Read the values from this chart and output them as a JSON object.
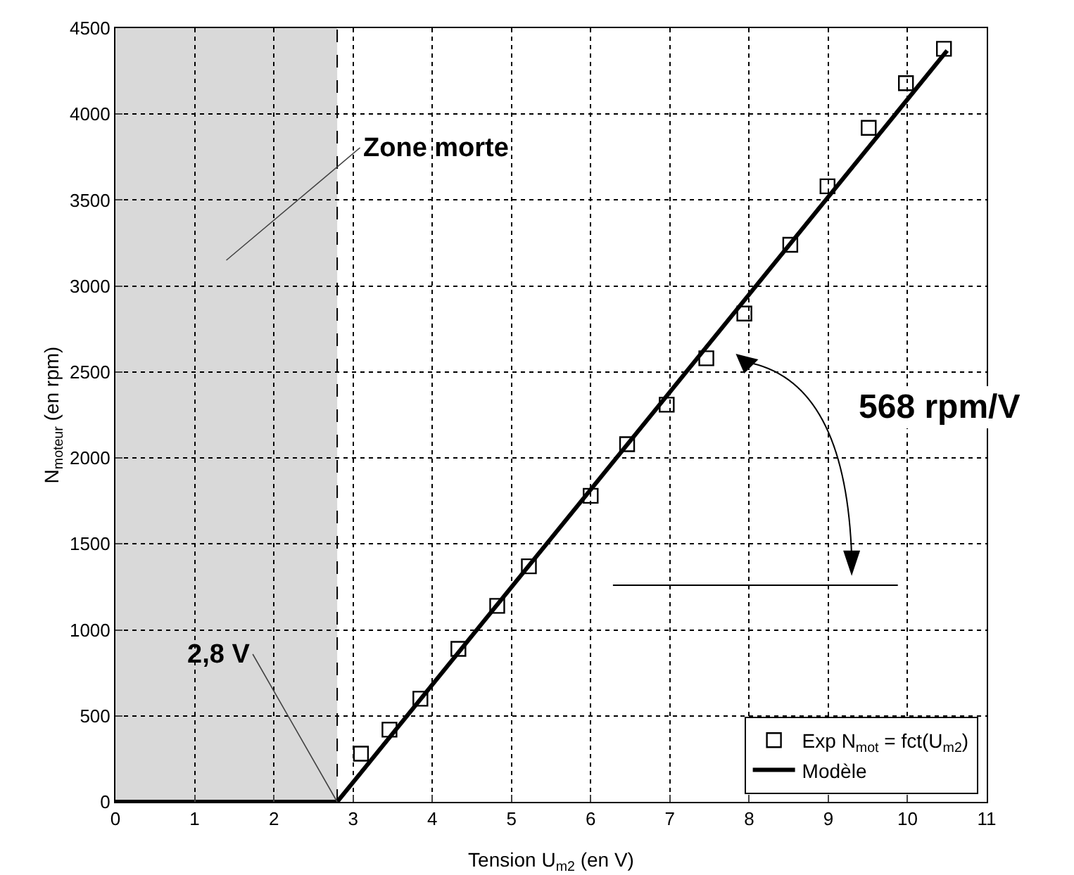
{
  "chart_data": {
    "type": "scatter",
    "xlabel": "Tension U$_{m2}$ (en V)",
    "ylabel": "N$_{moteur}$ (en rpm)",
    "xlim": [
      0,
      11
    ],
    "xticks": [
      0,
      1,
      2,
      3,
      4,
      5,
      6,
      7,
      8,
      9,
      10,
      11
    ],
    "ylim": [
      0,
      4500
    ],
    "yticks": [
      0,
      500,
      1000,
      1500,
      2000,
      2500,
      3000,
      3500,
      4000,
      4500
    ],
    "grid": true,
    "legend": "bottom right",
    "marker": "square",
    "series": [
      {
        "name": "Exp N$_{mot}$ = fct(U$_{m2}$)",
        "color": "#000000",
        "x": [
          3.1,
          3.46,
          3.85,
          4.33,
          4.82,
          5.22,
          6.0,
          6.46,
          6.96,
          7.46,
          7.94,
          8.52,
          8.99,
          9.51,
          9.98,
          10.46
        ],
        "values": [
          280,
          420,
          600,
          890,
          1140,
          1370,
          1780,
          2080,
          2310,
          2580,
          2840,
          3240,
          3580,
          3920,
          4180,
          4380
        ]
      },
      {
        "name": "Modèle",
        "type": "line",
        "color": "#000000",
        "marker": "none",
        "line_style": "solid",
        "x": [
          0,
          2.8,
          10.5
        ],
        "values": [
          0,
          0,
          4370
        ]
      }
    ],
    "bands": [
      {
        "axis": "x",
        "from": 0,
        "to": 2.8,
        "label": "Zone morte",
        "color": "#d9d9d9"
      }
    ],
    "annotations": [
      {
        "text": "2,8 V",
        "x": 2.8,
        "y": 0
      },
      "568 rpm/V"
    ]
  }
}
